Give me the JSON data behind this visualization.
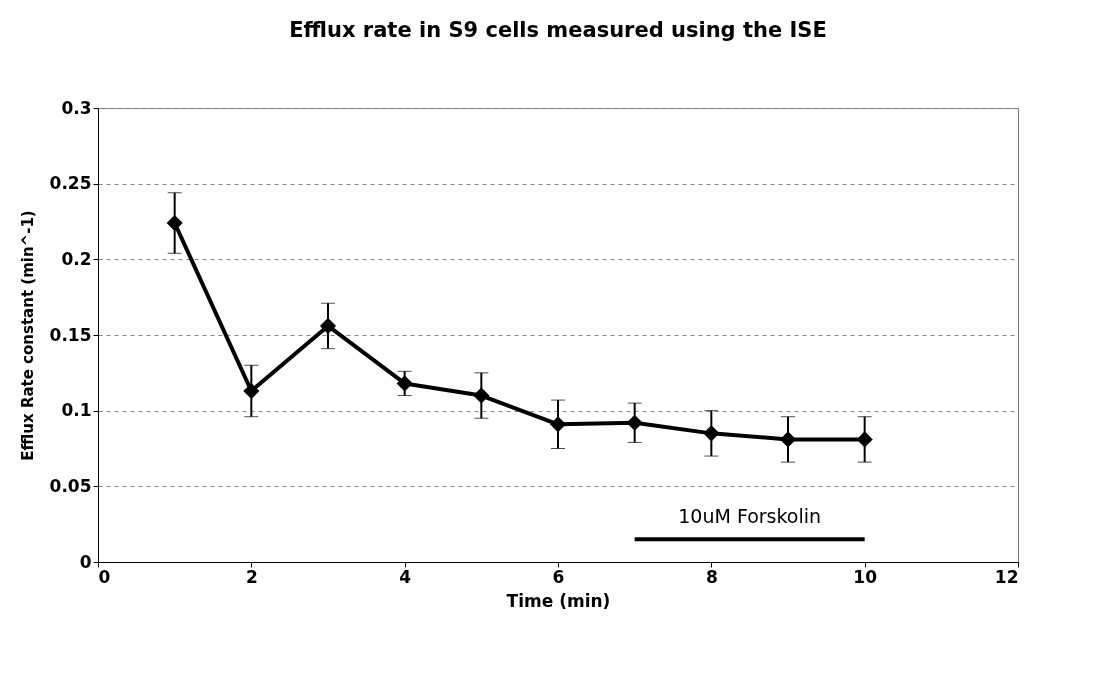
{
  "chart_data": {
    "type": "line",
    "title": "Efflux rate in S9 cells measured using the ISE",
    "xlabel": "Time (min)",
    "ylabel": "Efflux Rate constant (min^-1)",
    "x": [
      1,
      2,
      3,
      4,
      5,
      6,
      7,
      8,
      9,
      10
    ],
    "series": [
      {
        "color": "#000000",
        "values": [
          0.224,
          0.113,
          0.156,
          0.118,
          0.11,
          0.091,
          0.092,
          0.085,
          0.081,
          0.081
        ],
        "errors": [
          0.02,
          0.017,
          0.015,
          0.008,
          0.015,
          0.016,
          0.013,
          0.015,
          0.015,
          0.015
        ]
      },
      {
        "color": "#000000",
        "x": [
          7,
          10
        ],
        "values": [
          0.015,
          0.015
        ],
        "marker": "none"
      }
    ],
    "xlim": [
      0,
      12
    ],
    "xticks": [
      0,
      2,
      4,
      6,
      8,
      10,
      12
    ],
    "ylim": [
      0,
      0.3
    ],
    "yticks": [
      0,
      0.05,
      0.1,
      0.15,
      0.2,
      0.25,
      0.3
    ],
    "grid": "y",
    "marker": "diamond",
    "line_style": "solid",
    "legend": false,
    "annotations": [
      {
        "text": "10uM Forskolin",
        "x": 8.5,
        "y": 0.015
      }
    ]
  }
}
